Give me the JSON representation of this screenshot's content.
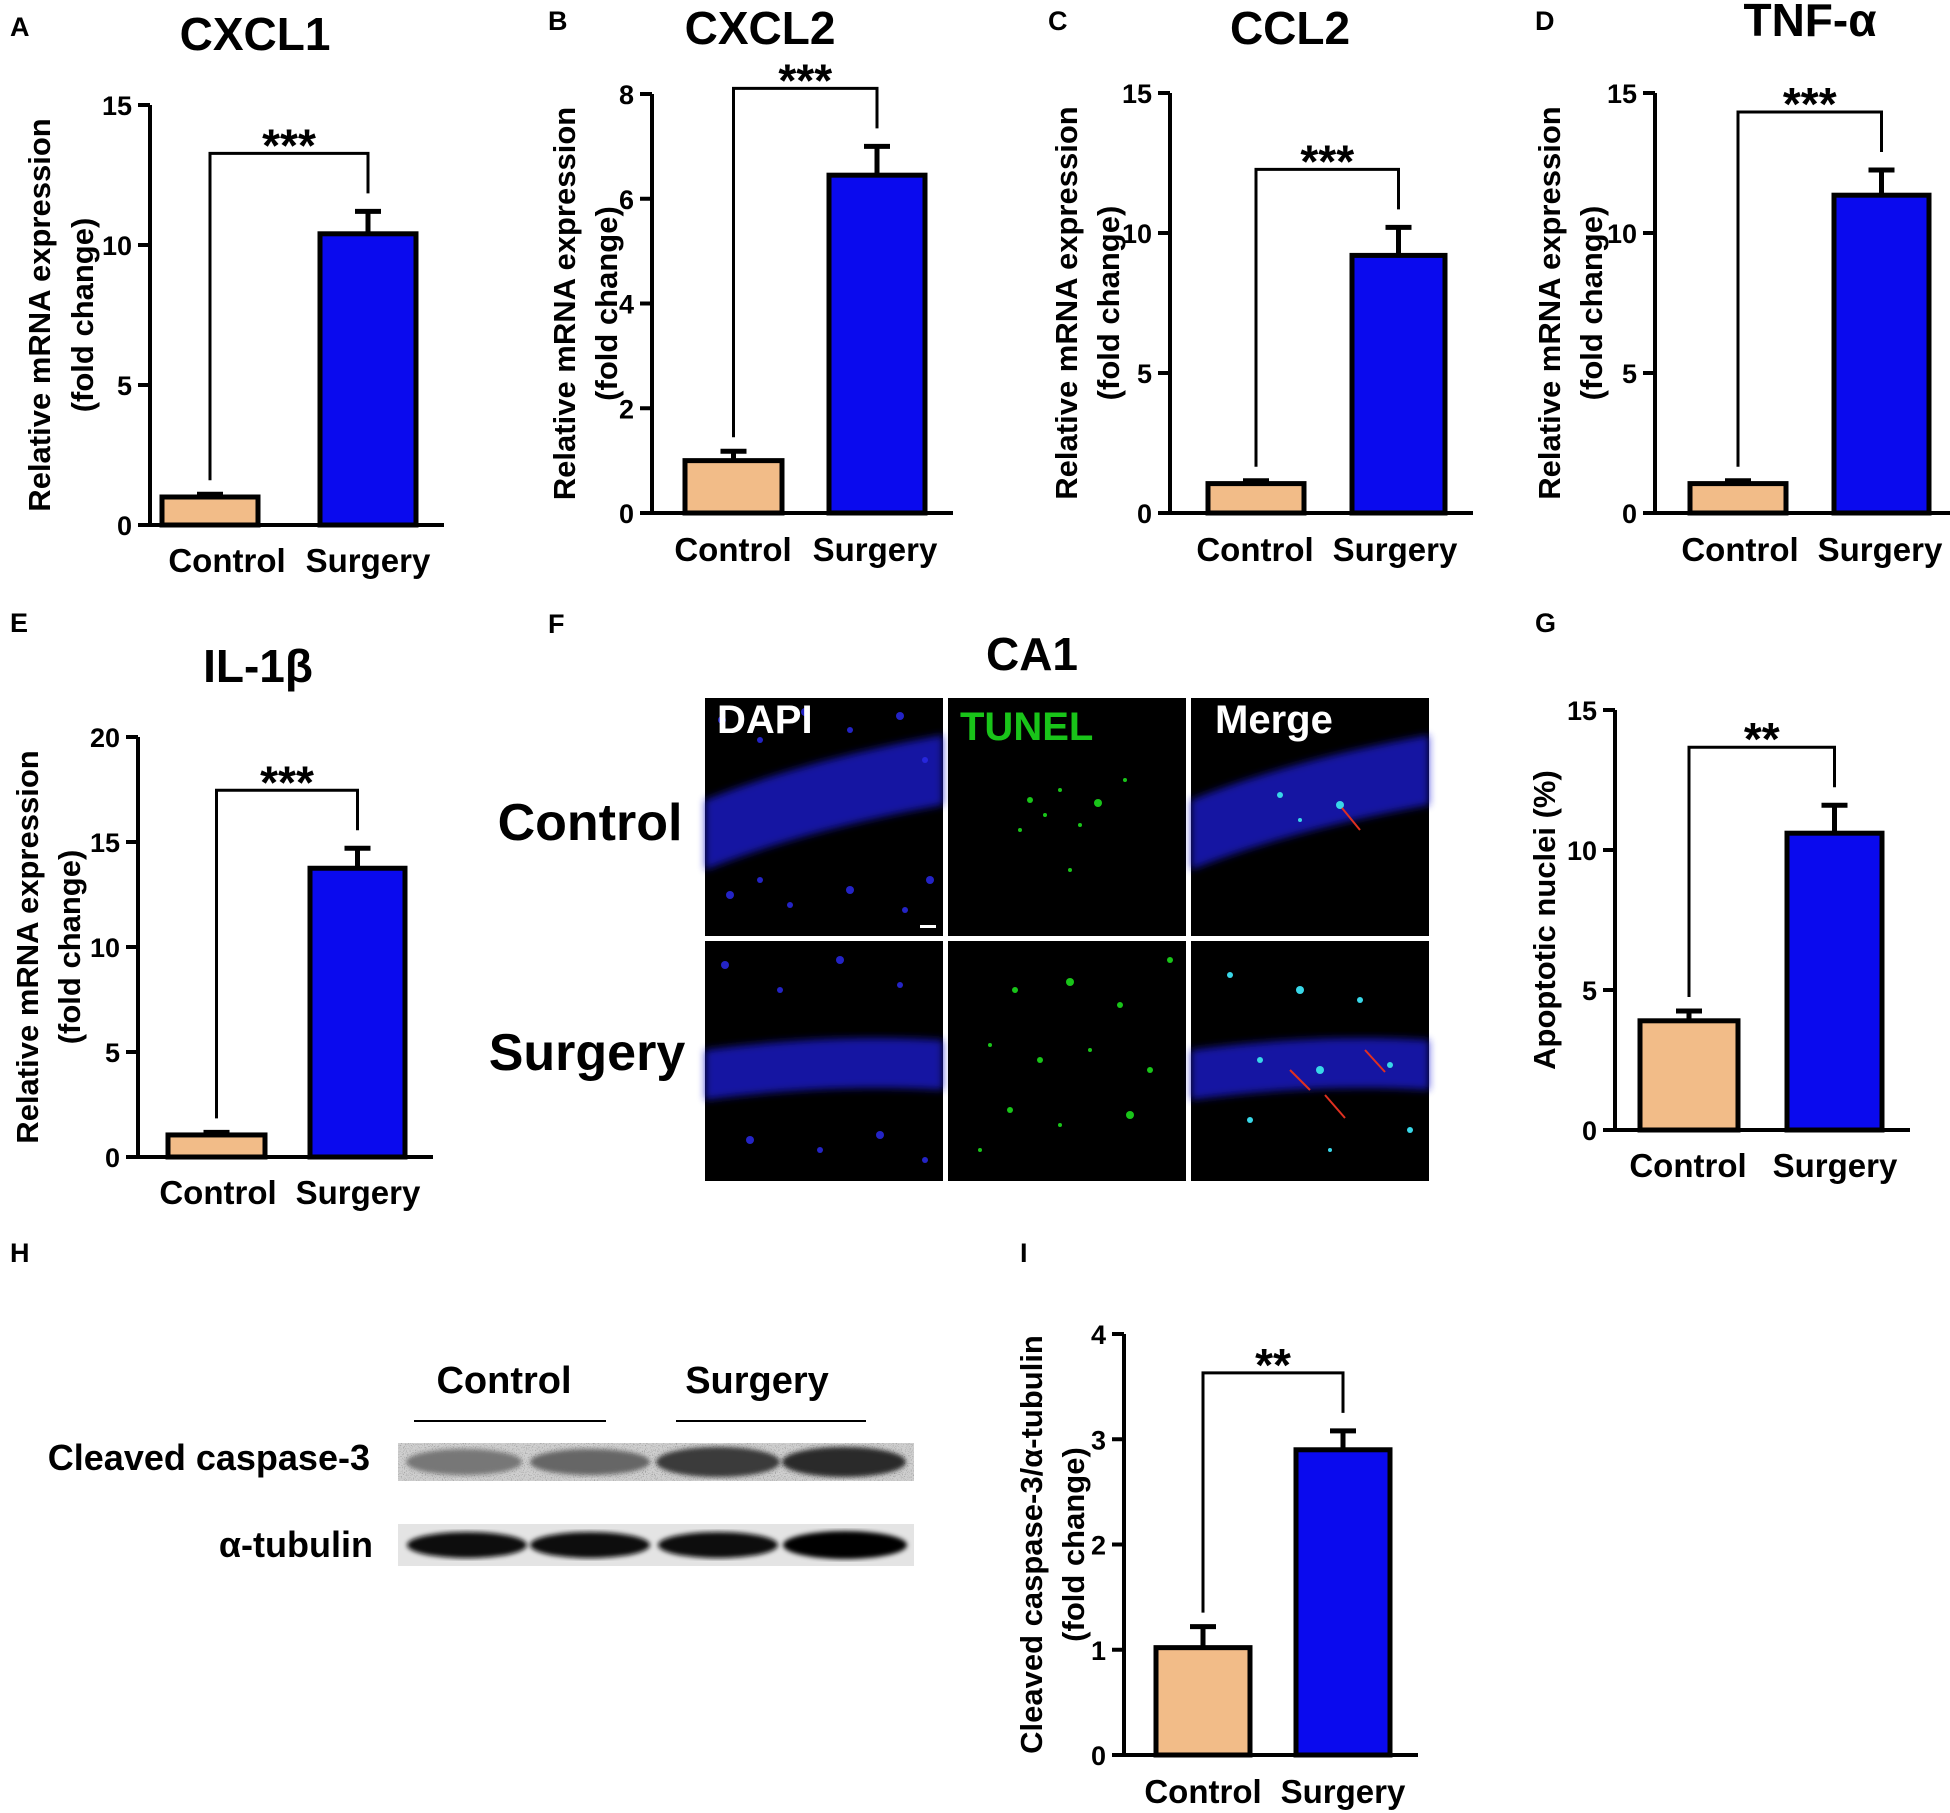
{
  "colors": {
    "control": "#F2BC88",
    "surgery": "#0A0AEE",
    "tunel": "#19C419",
    "arrow": "#E03020"
  },
  "panel_f": {
    "letter": "F",
    "title": "CA1",
    "columns": [
      "DAPI",
      "TUNEL",
      "Merge"
    ],
    "rows": [
      "Control",
      "Surgery"
    ]
  },
  "panel_h": {
    "letter": "H",
    "groups": [
      "Control",
      "Surgery"
    ],
    "bands": [
      "Cleaved caspase-3",
      "α-tubulin"
    ]
  },
  "chart_data": [
    {
      "id": "A",
      "type": "bar",
      "title": "CXCL1",
      "ylabel": [
        "Relative mRNA expression",
        "(fold change)"
      ],
      "categories": [
        "Control",
        "Surgery"
      ],
      "values": [
        1.0,
        10.4
      ],
      "errors": [
        0.1,
        0.8
      ],
      "ylim": [
        0,
        15
      ],
      "yticks": [
        0,
        5,
        10,
        15
      ],
      "significance": "***"
    },
    {
      "id": "B",
      "type": "bar",
      "title": "CXCL2",
      "ylabel": [
        "Relative mRNA expression",
        "(fold change)"
      ],
      "categories": [
        "Control",
        "Surgery"
      ],
      "values": [
        1.0,
        6.45
      ],
      "errors": [
        0.18,
        0.55
      ],
      "ylim": [
        0,
        8
      ],
      "yticks": [
        0,
        2,
        4,
        6,
        8
      ],
      "significance": "***"
    },
    {
      "id": "C",
      "type": "bar",
      "title": "CCL2",
      "ylabel": [
        "Relative mRNA expression",
        "(fold change)"
      ],
      "categories": [
        "Control",
        "Surgery"
      ],
      "values": [
        1.05,
        9.2
      ],
      "errors": [
        0.1,
        1.0
      ],
      "ylim": [
        0,
        15
      ],
      "yticks": [
        0,
        5,
        10,
        15
      ],
      "significance": "***"
    },
    {
      "id": "D",
      "type": "bar",
      "title": "TNF-α",
      "ylabel": [
        "Relative mRNA expression",
        "(fold change)"
      ],
      "categories": [
        "Control",
        "Surgery"
      ],
      "values": [
        1.05,
        11.35
      ],
      "errors": [
        0.1,
        0.9
      ],
      "ylim": [
        0,
        15
      ],
      "yticks": [
        0,
        5,
        10,
        15
      ],
      "significance": "***"
    },
    {
      "id": "E",
      "type": "bar",
      "title": "IL-1β",
      "ylabel": [
        "Relative mRNA expression",
        "(fold change)"
      ],
      "categories": [
        "Control",
        "Surgery"
      ],
      "values": [
        1.05,
        13.75
      ],
      "errors": [
        0.12,
        0.95
      ],
      "ylim": [
        0,
        20
      ],
      "yticks": [
        0,
        5,
        10,
        15,
        20
      ],
      "significance": "***"
    },
    {
      "id": "G",
      "type": "bar",
      "title": "",
      "ylabel": [
        "Apoptotic nuclei (%)"
      ],
      "categories": [
        "Control",
        "Surgery"
      ],
      "values": [
        3.9,
        10.6
      ],
      "errors": [
        0.35,
        1.0
      ],
      "ylim": [
        0,
        15
      ],
      "yticks": [
        0,
        5,
        10,
        15
      ],
      "significance": "**"
    },
    {
      "id": "I",
      "type": "bar",
      "title": "",
      "ylabel": [
        "Cleaved caspase-3/α-tubulin",
        "(fold change)"
      ],
      "categories": [
        "Control",
        "Surgery"
      ],
      "values": [
        1.02,
        2.9
      ],
      "errors": [
        0.2,
        0.18
      ],
      "ylim": [
        0,
        4
      ],
      "yticks": [
        0,
        1,
        2,
        3,
        4
      ],
      "significance": "**"
    }
  ]
}
